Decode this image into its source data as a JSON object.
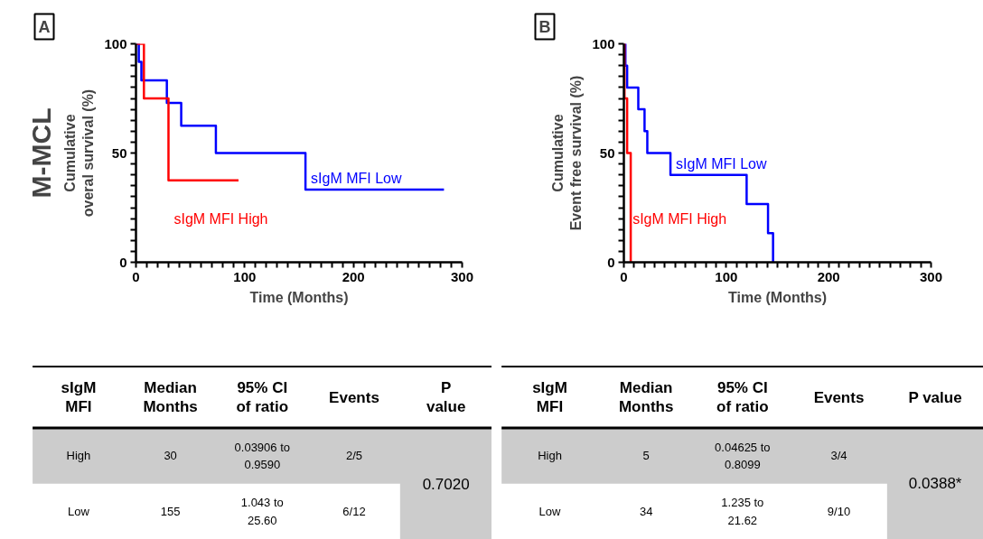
{
  "chart_data": [
    {
      "type": "step",
      "title": "A",
      "xlabel": "Time (Months)",
      "ylabel": "Cumulative\noveral survival (%)",
      "annotations": [
        "M-MCL"
      ],
      "xlim": [
        0,
        300
      ],
      "ylim": [
        0,
        100
      ],
      "xticks": [
        0,
        {
          "value": 10,
          "label": null
        },
        {
          "value": 20,
          "label": null
        },
        {
          "value": 30,
          "label": null
        },
        {
          "value": 40,
          "label": null
        },
        {
          "value": 50,
          "label": null
        },
        {
          "value": 60,
          "label": null
        },
        {
          "value": 70,
          "label": null
        },
        {
          "value": 80,
          "label": null
        },
        {
          "value": 90,
          "label": null
        },
        100,
        {
          "value": 110,
          "label": null
        },
        {
          "value": 120,
          "label": null
        },
        {
          "value": 130,
          "label": null
        },
        {
          "value": 140,
          "label": null
        },
        {
          "value": 150,
          "label": null
        },
        {
          "value": 160,
          "label": null
        },
        {
          "value": 170,
          "label": null
        },
        {
          "value": 180,
          "label": null
        },
        {
          "value": 190,
          "label": null
        },
        200,
        {
          "value": 210,
          "label": null
        },
        {
          "value": 220,
          "label": null
        },
        {
          "value": 230,
          "label": null
        },
        {
          "value": 240,
          "label": null
        },
        {
          "value": 250,
          "label": null
        },
        {
          "value": 260,
          "label": null
        },
        {
          "value": 270,
          "label": null
        },
        {
          "value": 280,
          "label": null
        },
        {
          "value": 290,
          "label": null
        },
        300
      ],
      "yticks": [
        0,
        {
          "value": 5,
          "label": null
        },
        {
          "value": 10,
          "label": null
        },
        {
          "value": 15,
          "label": null
        },
        {
          "value": 20,
          "label": null
        },
        {
          "value": 25,
          "label": null
        },
        {
          "value": 30,
          "label": null
        },
        {
          "value": 35,
          "label": null
        },
        {
          "value": 40,
          "label": null
        },
        {
          "value": 45,
          "label": null
        },
        50,
        {
          "value": 55,
          "label": null
        },
        {
          "value": 60,
          "label": null
        },
        {
          "value": 65,
          "label": null
        },
        {
          "value": 70,
          "label": null
        },
        {
          "value": 75,
          "label": null
        },
        {
          "value": 80,
          "label": null
        },
        {
          "value": 85,
          "label": null
        },
        {
          "value": 90,
          "label": null
        },
        {
          "value": 95,
          "label": null
        },
        100
      ],
      "series": [
        {
          "name": "sIgM MFI Low",
          "color": "#0000ff",
          "x": [
            0,
            2.6,
            5,
            28.4,
            41.6,
            73.5,
            155.9,
            283.3
          ],
          "values": [
            100,
            91.7,
            83.3,
            72.9,
            62.5,
            50,
            33.3,
            33.3
          ]
        },
        {
          "name": "sIgM MFI High",
          "color": "#ff0000",
          "x": [
            0,
            7.3,
            29.9,
            94.3
          ],
          "values": [
            100,
            75,
            37.5,
            37.5
          ]
        }
      ]
    },
    {
      "type": "step",
      "title": "B",
      "xlabel": "Time (Months)",
      "ylabel": "Cumulative\nEvent free survival (%)",
      "xlim": [
        0,
        300
      ],
      "ylim": [
        0,
        100
      ],
      "xticks": [
        0,
        {
          "value": 10,
          "label": null
        },
        {
          "value": 20,
          "label": null
        },
        {
          "value": 30,
          "label": null
        },
        {
          "value": 40,
          "label": null
        },
        {
          "value": 50,
          "label": null
        },
        {
          "value": 60,
          "label": null
        },
        {
          "value": 70,
          "label": null
        },
        {
          "value": 80,
          "label": null
        },
        {
          "value": 90,
          "label": null
        },
        100,
        {
          "value": 110,
          "label": null
        },
        {
          "value": 120,
          "label": null
        },
        {
          "value": 130,
          "label": null
        },
        {
          "value": 140,
          "label": null
        },
        {
          "value": 150,
          "label": null
        },
        {
          "value": 160,
          "label": null
        },
        {
          "value": 170,
          "label": null
        },
        {
          "value": 180,
          "label": null
        },
        {
          "value": 190,
          "label": null
        },
        200,
        {
          "value": 210,
          "label": null
        },
        {
          "value": 220,
          "label": null
        },
        {
          "value": 230,
          "label": null
        },
        {
          "value": 240,
          "label": null
        },
        {
          "value": 250,
          "label": null
        },
        {
          "value": 260,
          "label": null
        },
        {
          "value": 270,
          "label": null
        },
        {
          "value": 280,
          "label": null
        },
        {
          "value": 290,
          "label": null
        },
        300
      ],
      "yticks": [
        0,
        {
          "value": 5,
          "label": null
        },
        {
          "value": 10,
          "label": null
        },
        {
          "value": 15,
          "label": null
        },
        {
          "value": 20,
          "label": null
        },
        {
          "value": 25,
          "label": null
        },
        {
          "value": 30,
          "label": null
        },
        {
          "value": 35,
          "label": null
        },
        {
          "value": 40,
          "label": null
        },
        {
          "value": 45,
          "label": null
        },
        50,
        {
          "value": 55,
          "label": null
        },
        {
          "value": 60,
          "label": null
        },
        {
          "value": 65,
          "label": null
        },
        {
          "value": 70,
          "label": null
        },
        {
          "value": 75,
          "label": null
        },
        {
          "value": 80,
          "label": null
        },
        {
          "value": 85,
          "label": null
        },
        {
          "value": 90,
          "label": null
        },
        {
          "value": 95,
          "label": null
        },
        100
      ],
      "series": [
        {
          "name": "sIgM MFI Low",
          "color": "#0000ff",
          "x": [
            0,
            1.5,
            3.2,
            14.1,
            20.2,
            22.9,
            45.5,
            119.9,
            140.8,
            145.7
          ],
          "values": [
            100,
            90,
            80,
            70,
            60,
            50,
            40,
            26.7,
            13.3,
            0
          ]
        },
        {
          "name": "sIgM MFI High",
          "color": "#ff0000",
          "x": [
            0,
            0.6,
            3.2,
            6.7
          ],
          "values": [
            100,
            75,
            50,
            0
          ]
        }
      ]
    },
    {
      "type": "other",
      "categories": [
        "sIgM\nMFI",
        "Median\nMonths",
        "95% CI\nof ratio",
        "Events",
        "P\nvalue"
      ],
      "y_categories": [
        "High",
        "Low"
      ],
      "cell_labels": [
        [
          "30",
          "0.03906 to 0.9590",
          "2/5"
        ],
        [
          "155",
          "1.043 to 25.60",
          "6/12"
        ]
      ],
      "annotations": [
        "0.7020"
      ]
    },
    {
      "type": "other",
      "categories": [
        "sIgM\nMFI",
        "Median\nMonths",
        "95% CI\nof ratio",
        "Events",
        "P value"
      ],
      "y_categories": [
        "High",
        "Low"
      ],
      "cell_labels": [
        [
          "5",
          "0.04625 to 0.8099",
          "3/4"
        ],
        [
          "34",
          "1.235 to 21.62",
          "9/10"
        ]
      ],
      "annotations": [
        "0.0388*"
      ]
    }
  ]
}
